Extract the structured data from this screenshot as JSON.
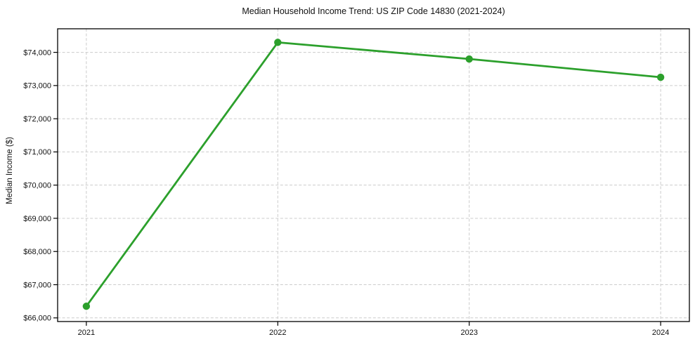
{
  "chart_data": {
    "type": "line",
    "title": "Median Household Income Trend: US ZIP Code 14830 (2021-2024)",
    "xlabel": "",
    "ylabel": "Median Income ($)",
    "categories": [
      "2021",
      "2022",
      "2023",
      "2024"
    ],
    "x": [
      2021,
      2022,
      2023,
      2024
    ],
    "series": [
      {
        "name": "Median Household Income",
        "values": [
          66350,
          74300,
          73800,
          73250
        ]
      }
    ],
    "y_ticks": [
      66000,
      67000,
      68000,
      69000,
      70000,
      71000,
      72000,
      73000,
      74000
    ],
    "y_tick_labels": [
      "$66,000",
      "$67,000",
      "$68,000",
      "$69,000",
      "$70,000",
      "$71,000",
      "$72,000",
      "$73,000",
      "$74,000"
    ],
    "xlim": [
      2020.85,
      2024.15
    ],
    "ylim": [
      65890,
      74710
    ],
    "grid": true,
    "grid_style": "dashed",
    "legend": "none",
    "marker": "circle",
    "colors": {
      "line": "#2ca02c",
      "marker": "#2ca02c",
      "grid": "#cccccc",
      "spine": "#000000",
      "text": "#111111",
      "background": "#ffffff"
    }
  }
}
